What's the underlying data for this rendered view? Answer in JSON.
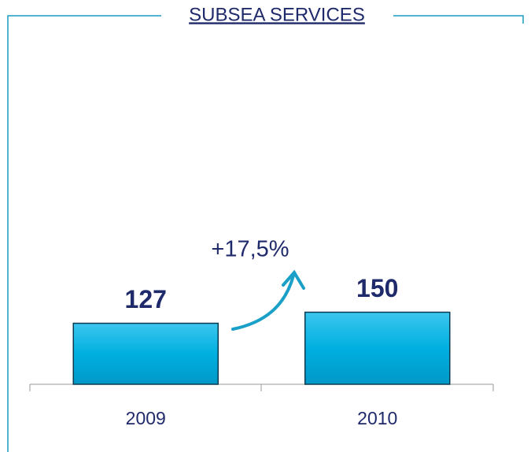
{
  "chart_data": {
    "type": "bar",
    "title": "SUBSEA SERVICES",
    "categories": [
      "2009",
      "2010"
    ],
    "values": [
      127,
      150
    ],
    "color": "#00b0e0",
    "annotation": "+17,5%"
  }
}
